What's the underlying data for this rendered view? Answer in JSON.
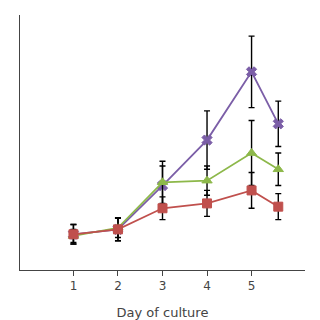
{
  "chart_data": {
    "type": "line",
    "xlabel": "Day of culture",
    "x": [
      1,
      2,
      3,
      4,
      5,
      5.6
    ],
    "series": [
      {
        "color": "#7B5EA7",
        "marker": "x",
        "values": [
          0.1,
          0.13,
          0.4,
          0.68,
          1.1,
          0.78
        ],
        "yerr": [
          0.06,
          0.07,
          0.12,
          0.18,
          0.22,
          0.14
        ]
      },
      {
        "color": "#8DB84A",
        "marker": "triangle",
        "values": [
          0.09,
          0.14,
          0.42,
          0.43,
          0.6,
          0.5
        ],
        "yerr": [
          0.04,
          0.06,
          0.13,
          0.09,
          0.2,
          0.1
        ]
      },
      {
        "color": "#C0504D",
        "marker": "square",
        "values": [
          0.1,
          0.13,
          0.26,
          0.29,
          0.37,
          0.27
        ],
        "yerr": [
          0.06,
          0.07,
          0.07,
          0.08,
          0.11,
          0.08
        ]
      }
    ],
    "xlim": [
      -0.2,
      6.2
    ],
    "ylim": [
      -0.12,
      1.45
    ],
    "xticks": [
      1,
      2,
      3,
      4,
      5
    ],
    "grid": false,
    "tick_labels": "x"
  }
}
